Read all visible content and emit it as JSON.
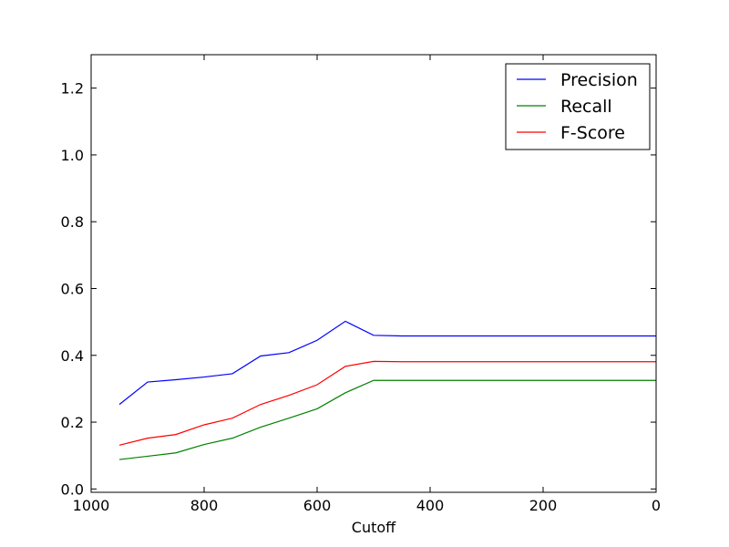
{
  "chart_data": {
    "type": "line",
    "title": "",
    "xlabel": "Cutoff",
    "ylabel": "",
    "xlim": [
      1000,
      0
    ],
    "ylim": [
      -0.01,
      1.3
    ],
    "x_reversed": true,
    "grid": false,
    "legend_position": "top-right",
    "x_ticks": [
      1000,
      800,
      600,
      400,
      200,
      0
    ],
    "x_tick_labels": [
      "1000",
      "800",
      "600",
      "400",
      "200",
      "0"
    ],
    "y_ticks": [
      0.0,
      0.2,
      0.4,
      0.6,
      0.8,
      1.0,
      1.2
    ],
    "y_tick_labels": [
      "0.0",
      "0.2",
      "0.4",
      "0.6",
      "0.8",
      "1.0",
      "1.2"
    ],
    "x": [
      950,
      900,
      850,
      800,
      750,
      700,
      650,
      600,
      550,
      500,
      450,
      400,
      350,
      300,
      250,
      200,
      150,
      100,
      50,
      0
    ],
    "series": [
      {
        "name": "Precision",
        "color": "#0000ff",
        "values": [
          0.253,
          0.32,
          0.327,
          0.335,
          0.345,
          0.398,
          0.408,
          0.445,
          0.502,
          0.46,
          0.458,
          0.458,
          0.458,
          0.458,
          0.458,
          0.458,
          0.458,
          0.458,
          0.458,
          0.458
        ]
      },
      {
        "name": "Recall",
        "color": "#008000",
        "values": [
          0.088,
          0.098,
          0.108,
          0.133,
          0.152,
          0.185,
          0.212,
          0.24,
          0.288,
          0.325,
          0.325,
          0.325,
          0.325,
          0.325,
          0.325,
          0.325,
          0.325,
          0.325,
          0.325,
          0.325
        ]
      },
      {
        "name": "F-Score",
        "color": "#ff0000",
        "values": [
          0.131,
          0.152,
          0.163,
          0.192,
          0.212,
          0.253,
          0.28,
          0.312,
          0.367,
          0.382,
          0.381,
          0.381,
          0.381,
          0.381,
          0.381,
          0.381,
          0.381,
          0.381,
          0.381,
          0.381
        ]
      }
    ]
  }
}
